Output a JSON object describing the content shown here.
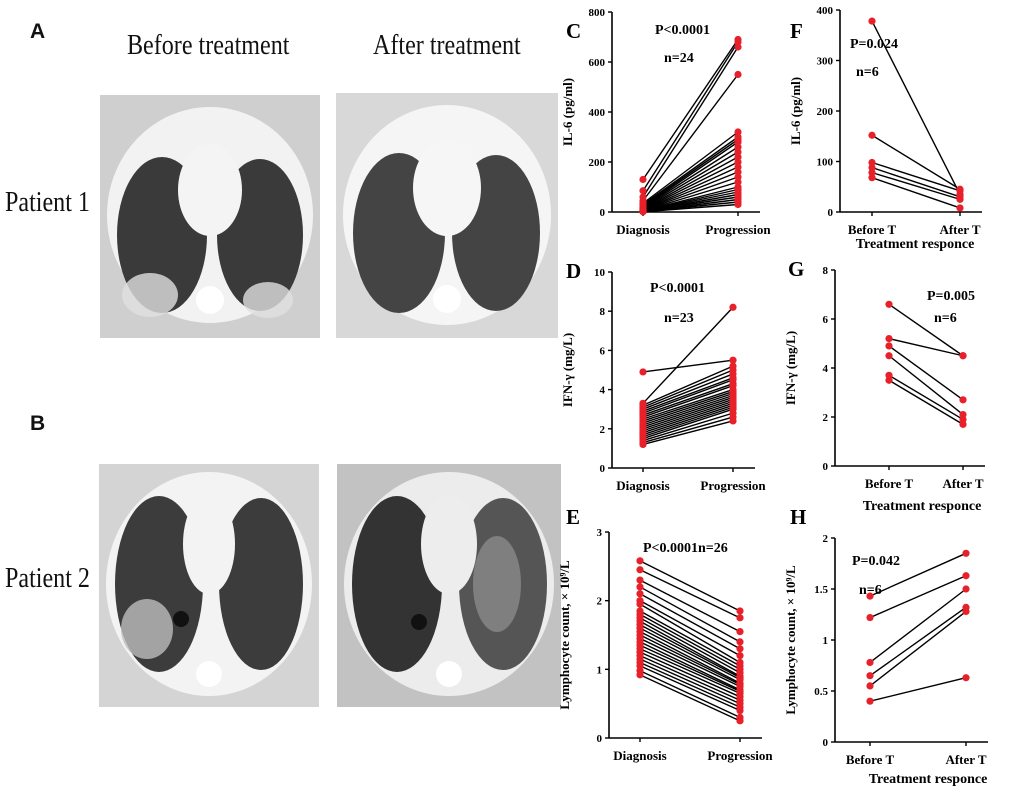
{
  "figure": {
    "panel_labels": {
      "A": "A",
      "B": "B",
      "C": "C",
      "D": "D",
      "E": "E",
      "F": "F",
      "G": "G",
      "H": "H"
    },
    "column_titles": [
      "Before treatment",
      "After treatment"
    ],
    "row_titles": [
      "Patient 1",
      "Patient 2"
    ],
    "ct_images": [
      {
        "patient": "Patient 1",
        "phase": "Before treatment",
        "tone": "#cfcfcf"
      },
      {
        "patient": "Patient 1",
        "phase": "After treatment",
        "tone": "#d8d8d8"
      },
      {
        "patient": "Patient 2",
        "phase": "Before treatment",
        "tone": "#d4d4d4"
      },
      {
        "patient": "Patient 2",
        "phase": "After treatment",
        "tone": "#c2c2c2"
      }
    ],
    "colors": {
      "point": "#e8202a",
      "line": "#000000",
      "lung": "#3a3a3a",
      "body": "#f2f2f2"
    }
  },
  "chart_data": [
    {
      "id": "C",
      "type": "paired-scatter",
      "ylabel": "IL-6 (pg/ml)",
      "xlabel": "",
      "categories": [
        "Diagnosis",
        "Progression"
      ],
      "ylim": [
        0,
        800
      ],
      "yticks": [
        0,
        200,
        400,
        600,
        800
      ],
      "annotations": [
        "P<0.0001",
        "n=24"
      ],
      "pairs": [
        [
          130,
          690
        ],
        [
          85,
          680
        ],
        [
          60,
          660
        ],
        [
          45,
          550
        ],
        [
          35,
          320
        ],
        [
          30,
          300
        ],
        [
          25,
          290
        ],
        [
          20,
          280
        ],
        [
          18,
          260
        ],
        [
          15,
          240
        ],
        [
          12,
          220
        ],
        [
          10,
          200
        ],
        [
          8,
          180
        ],
        [
          7,
          160
        ],
        [
          6,
          140
        ],
        [
          5,
          120
        ],
        [
          5,
          100
        ],
        [
          4,
          90
        ],
        [
          4,
          80
        ],
        [
          3,
          70
        ],
        [
          3,
          60
        ],
        [
          2,
          50
        ],
        [
          2,
          40
        ],
        [
          1,
          30
        ]
      ]
    },
    {
      "id": "F",
      "type": "paired-scatter",
      "ylabel": "IL-6 (pg/ml)",
      "xlabel": "Treatment responce",
      "categories": [
        "Before T",
        "After T"
      ],
      "ylim": [
        0,
        400
      ],
      "yticks": [
        0,
        100,
        200,
        300,
        400
      ],
      "annotations": [
        "P=0.024",
        "n=6"
      ],
      "pairs": [
        [
          378,
          35
        ],
        [
          152,
          45
        ],
        [
          98,
          42
        ],
        [
          88,
          30
        ],
        [
          78,
          25
        ],
        [
          68,
          8
        ]
      ]
    },
    {
      "id": "D",
      "type": "paired-scatter",
      "ylabel": "IFN-γ (mg/L)",
      "xlabel": "",
      "categories": [
        "Diagnosis",
        "Progression"
      ],
      "ylim": [
        0,
        10
      ],
      "yticks": [
        0,
        2,
        4,
        6,
        8,
        10
      ],
      "annotations": [
        "P<0.0001",
        "n=23"
      ],
      "pairs": [
        [
          4.9,
          5.5
        ],
        [
          3.3,
          8.2
        ],
        [
          3.2,
          5.2
        ],
        [
          3.1,
          5.0
        ],
        [
          3.0,
          4.8
        ],
        [
          2.9,
          4.6
        ],
        [
          2.8,
          4.5
        ],
        [
          2.7,
          4.3
        ],
        [
          2.6,
          4.2
        ],
        [
          2.5,
          4.0
        ],
        [
          2.4,
          3.9
        ],
        [
          2.3,
          3.8
        ],
        [
          2.2,
          3.7
        ],
        [
          2.1,
          3.6
        ],
        [
          2.0,
          3.5
        ],
        [
          1.9,
          3.4
        ],
        [
          1.8,
          3.3
        ],
        [
          1.7,
          3.2
        ],
        [
          1.6,
          3.1
        ],
        [
          1.5,
          3.0
        ],
        [
          1.4,
          2.8
        ],
        [
          1.3,
          2.6
        ],
        [
          1.2,
          2.4
        ]
      ]
    },
    {
      "id": "G",
      "type": "paired-scatter",
      "ylabel": "IFN-γ (mg/L)",
      "xlabel": "Treatment responce",
      "categories": [
        "Before T",
        "After T"
      ],
      "ylim": [
        0,
        8
      ],
      "yticks": [
        0,
        2,
        4,
        6,
        8
      ],
      "annotations": [
        "P=0.005",
        "n=6"
      ],
      "pairs": [
        [
          6.6,
          4.5
        ],
        [
          5.2,
          4.5
        ],
        [
          4.9,
          2.7
        ],
        [
          4.5,
          2.1
        ],
        [
          3.7,
          1.9
        ],
        [
          3.5,
          1.7
        ]
      ]
    },
    {
      "id": "E",
      "type": "paired-scatter",
      "ylabel": "Lymphocyte count, × 10⁹/L",
      "xlabel": "",
      "categories": [
        "Diagnosis",
        "Progression"
      ],
      "ylim": [
        0,
        3
      ],
      "yticks": [
        0,
        1,
        2,
        3
      ],
      "annotations": [
        "P<0.0001",
        "n=26"
      ],
      "pairs": [
        [
          2.58,
          1.85
        ],
        [
          2.45,
          1.75
        ],
        [
          2.3,
          1.55
        ],
        [
          2.2,
          1.4
        ],
        [
          2.1,
          1.3
        ],
        [
          2.0,
          1.2
        ],
        [
          1.95,
          1.1
        ],
        [
          1.85,
          1.05
        ],
        [
          1.8,
          1.0
        ],
        [
          1.75,
          0.95
        ],
        [
          1.7,
          0.9
        ],
        [
          1.65,
          0.88
        ],
        [
          1.6,
          0.85
        ],
        [
          1.55,
          0.8
        ],
        [
          1.5,
          0.78
        ],
        [
          1.45,
          0.75
        ],
        [
          1.4,
          0.7
        ],
        [
          1.35,
          0.68
        ],
        [
          1.3,
          0.65
        ],
        [
          1.25,
          0.6
        ],
        [
          1.2,
          0.55
        ],
        [
          1.15,
          0.5
        ],
        [
          1.1,
          0.45
        ],
        [
          1.05,
          0.4
        ],
        [
          0.98,
          0.3
        ],
        [
          0.92,
          0.25
        ]
      ]
    },
    {
      "id": "H",
      "type": "paired-scatter",
      "ylabel": "Lymphocyte count, × 10⁹/L",
      "xlabel": "Treatment responce",
      "categories": [
        "Before T",
        "After T"
      ],
      "ylim": [
        0,
        2.0
      ],
      "yticks": [
        0,
        0.5,
        1.0,
        1.5,
        2.0
      ],
      "annotations": [
        "P=0.042",
        "n=6"
      ],
      "pairs": [
        [
          1.43,
          1.85
        ],
        [
          1.22,
          1.63
        ],
        [
          0.78,
          1.5
        ],
        [
          0.65,
          1.32
        ],
        [
          0.55,
          1.28
        ],
        [
          0.4,
          0.63
        ]
      ]
    }
  ]
}
